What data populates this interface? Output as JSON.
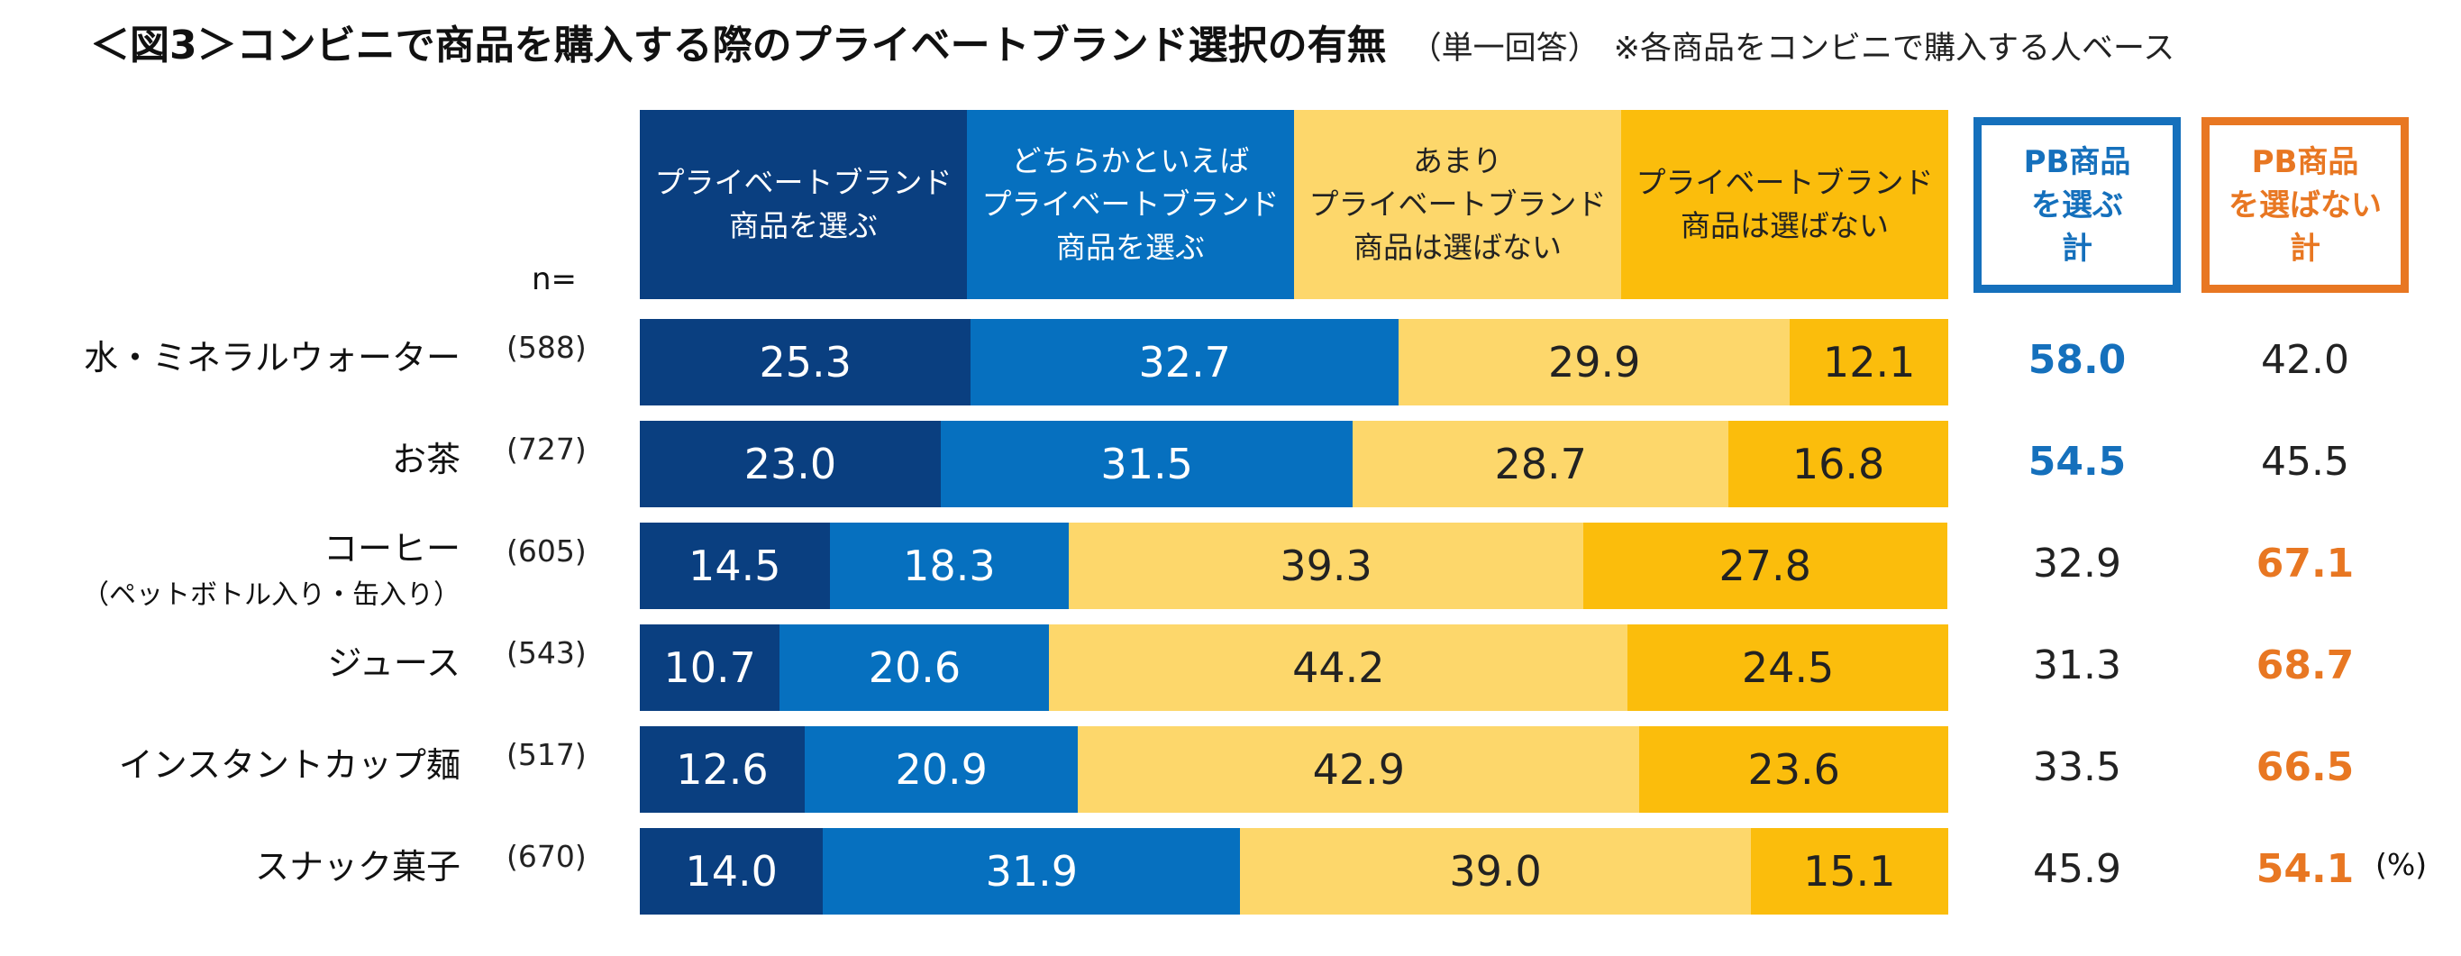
{
  "title": {
    "main": "＜図3＞コンビニで商品を購入する際のプライベートブランド選択の有無",
    "sub": "（単一回答）",
    "note": "※各商品をコンビニで購入する人ベース"
  },
  "n_label": "n=",
  "unit": "(%)",
  "colors": {
    "choose": "#0a3f80",
    "rather_choose": "#0670bf",
    "rather_not": "#fdd76b",
    "not_choose": "#fbbd0c",
    "total_choose": "#1570bc",
    "total_not": "#e87722"
  },
  "boxes": {
    "choose_total": "PB商品\nを選ぶ\n計",
    "not_total": "PB商品\nを選ばない\n計"
  },
  "chart_data": {
    "type": "bar",
    "orientation": "horizontal-stacked-100",
    "title": "＜図3＞コンビニで商品を購入する際のプライベートブランド選択の有無",
    "xlim": [
      0,
      100
    ],
    "categories": [
      {
        "label": "水・ミネラルウォーター",
        "label2": "",
        "n": "(588)"
      },
      {
        "label": "お茶",
        "label2": "",
        "n": "(727)"
      },
      {
        "label": "コーヒー",
        "label2": "（ペットボトル入り・缶入り）",
        "n": "(605)"
      },
      {
        "label": "ジュース",
        "label2": "",
        "n": "(543)"
      },
      {
        "label": "インスタントカップ麺",
        "label2": "",
        "n": "(517)"
      },
      {
        "label": "スナック菓子",
        "label2": "",
        "n": "(670)"
      }
    ],
    "series": [
      {
        "name": "プライベートブランド\n商品を選ぶ",
        "color_key": "choose",
        "text_color": "#ffffff",
        "values": [
          "25.3",
          "23.0",
          "14.5",
          "10.7",
          "12.6",
          "14.0"
        ]
      },
      {
        "name": "どちらかといえば\nプライベートブランド\n商品を選ぶ",
        "color_key": "rather_choose",
        "text_color": "#ffffff",
        "values": [
          "32.7",
          "31.5",
          "18.3",
          "20.6",
          "20.9",
          "31.9"
        ]
      },
      {
        "name": "あまり\nプライベートブランド\n商品は選ばない",
        "color_key": "rather_not",
        "text_color": "#222222",
        "values": [
          "29.9",
          "28.7",
          "39.3",
          "44.2",
          "42.9",
          "39.0"
        ]
      },
      {
        "name": "プライベートブランド\n商品は選ばない",
        "color_key": "not_choose",
        "text_color": "#222222",
        "values": [
          "12.1",
          "16.8",
          "27.8",
          "24.5",
          "23.6",
          "15.1"
        ]
      }
    ],
    "totals": {
      "choose": [
        "58.0",
        "54.5",
        "32.9",
        "31.3",
        "33.5",
        "45.9"
      ],
      "not_choose": [
        "42.0",
        "45.5",
        "67.1",
        "68.7",
        "66.5",
        "54.1"
      ],
      "highlight": [
        "choose",
        "choose",
        "not",
        "not",
        "not",
        "not"
      ]
    }
  }
}
